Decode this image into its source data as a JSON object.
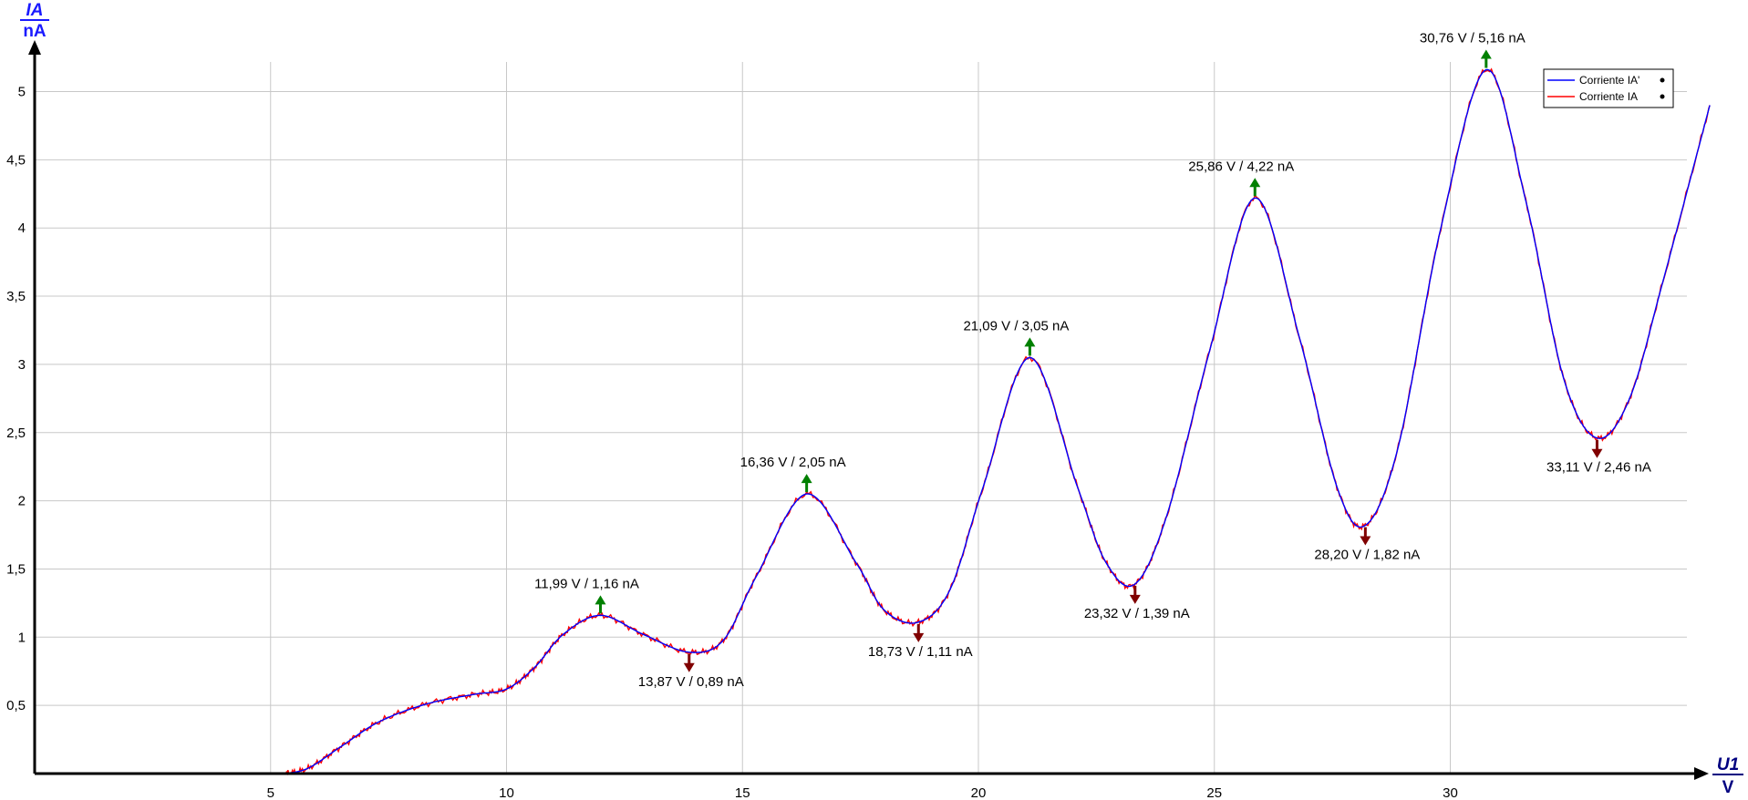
{
  "chart_data": {
    "type": "line",
    "title": "",
    "x_axis": {
      "symbol": "U1",
      "unit": "V",
      "range": [
        0,
        35.5
      ],
      "ticks": [
        5,
        10,
        15,
        20,
        25,
        30
      ]
    },
    "y_axis": {
      "symbol": "IA",
      "unit": "nA",
      "range": [
        0,
        5.25
      ],
      "ticks": [
        0.5,
        1,
        1.5,
        2,
        2.5,
        3,
        3.5,
        4,
        4.5,
        5
      ],
      "tick_labels": [
        "0,5",
        "1",
        "1,5",
        "2",
        "2,5",
        "3",
        "3,5",
        "4",
        "4,5",
        "5"
      ]
    },
    "grid": true,
    "legend": {
      "position": "top-right",
      "entries": [
        {
          "name": "Corriente IA'",
          "color": "#0000ff"
        },
        {
          "name": "Corriente IA",
          "color": "#ff0000"
        }
      ]
    },
    "series": [
      {
        "name": "Corriente IA'",
        "color": "#0000ff",
        "x": [
          5.3,
          5.8,
          6.5,
          7.3,
          8.3,
          9.3,
          10.0,
          10.6,
          11.2,
          11.99,
          12.9,
          13.87,
          14.6,
          15.3,
          16.36,
          17.4,
          18.0,
          18.73,
          19.4,
          20.1,
          21.09,
          22.1,
          22.7,
          23.32,
          24.0,
          24.9,
          25.86,
          26.8,
          27.6,
          28.2,
          28.9,
          29.8,
          30.76,
          31.6,
          32.4,
          33.11,
          33.8,
          34.5,
          35.5
        ],
        "y": [
          0.0,
          0.04,
          0.2,
          0.38,
          0.51,
          0.58,
          0.62,
          0.78,
          1.02,
          1.16,
          1.02,
          0.89,
          0.98,
          1.45,
          2.05,
          1.55,
          1.2,
          1.11,
          1.35,
          2.1,
          3.05,
          2.1,
          1.55,
          1.39,
          1.9,
          3.1,
          4.22,
          3.2,
          2.1,
          1.82,
          2.4,
          4.0,
          5.16,
          4.2,
          2.9,
          2.46,
          2.75,
          3.6,
          4.9
        ]
      },
      {
        "name": "Corriente IA",
        "color": "#ff0000",
        "x": [
          5.3,
          5.8,
          6.5,
          7.3,
          8.3,
          9.3,
          10.0,
          10.6,
          11.2,
          11.99,
          12.9,
          13.87,
          14.6,
          15.3,
          16.36,
          17.4,
          18.0,
          18.73,
          19.4,
          20.1,
          21.09,
          22.1,
          22.7,
          23.32,
          24.0,
          24.9,
          25.86,
          26.8,
          27.6,
          28.2,
          28.9,
          29.8,
          30.76,
          31.6,
          32.4,
          33.11,
          33.8,
          34.5,
          35.5
        ],
        "y": [
          0.0,
          0.04,
          0.2,
          0.38,
          0.51,
          0.58,
          0.62,
          0.78,
          1.02,
          1.16,
          1.02,
          0.89,
          0.98,
          1.45,
          2.05,
          1.55,
          1.2,
          1.11,
          1.35,
          2.1,
          3.05,
          2.1,
          1.55,
          1.39,
          1.9,
          3.1,
          4.22,
          3.2,
          2.1,
          1.82,
          2.4,
          4.0,
          5.16,
          4.2,
          2.9,
          2.46,
          2.75,
          3.6,
          4.9
        ]
      }
    ],
    "annotations": [
      {
        "kind": "max",
        "x": 11.99,
        "y": 1.16,
        "label": "11,99 V / 1,16 nA"
      },
      {
        "kind": "min",
        "x": 13.87,
        "y": 0.89,
        "label": "13,87 V / 0,89 nA"
      },
      {
        "kind": "max",
        "x": 16.36,
        "y": 2.05,
        "label": "16,36 V / 2,05 nA"
      },
      {
        "kind": "min",
        "x": 18.73,
        "y": 1.11,
        "label": "18,73 V / 1,11 nA"
      },
      {
        "kind": "max",
        "x": 21.09,
        "y": 3.05,
        "label": "21,09 V / 3,05 nA"
      },
      {
        "kind": "min",
        "x": 23.32,
        "y": 1.39,
        "label": "23,32 V / 1,39 nA"
      },
      {
        "kind": "max",
        "x": 25.86,
        "y": 4.22,
        "label": "25,86 V / 4,22 nA"
      },
      {
        "kind": "min",
        "x": 28.2,
        "y": 1.82,
        "label": "28,20 V / 1,82 nA"
      },
      {
        "kind": "max",
        "x": 30.76,
        "y": 5.16,
        "label": "30,76 V / 5,16 nA"
      },
      {
        "kind": "min",
        "x": 33.11,
        "y": 2.46,
        "label": "33,11 V / 2,46 nA"
      }
    ],
    "colors": {
      "max_arrow": "#008000",
      "min_arrow": "#800000",
      "grid": "#c8c8c8",
      "axis": "#000000",
      "axis_title": "#1a1aff"
    }
  }
}
